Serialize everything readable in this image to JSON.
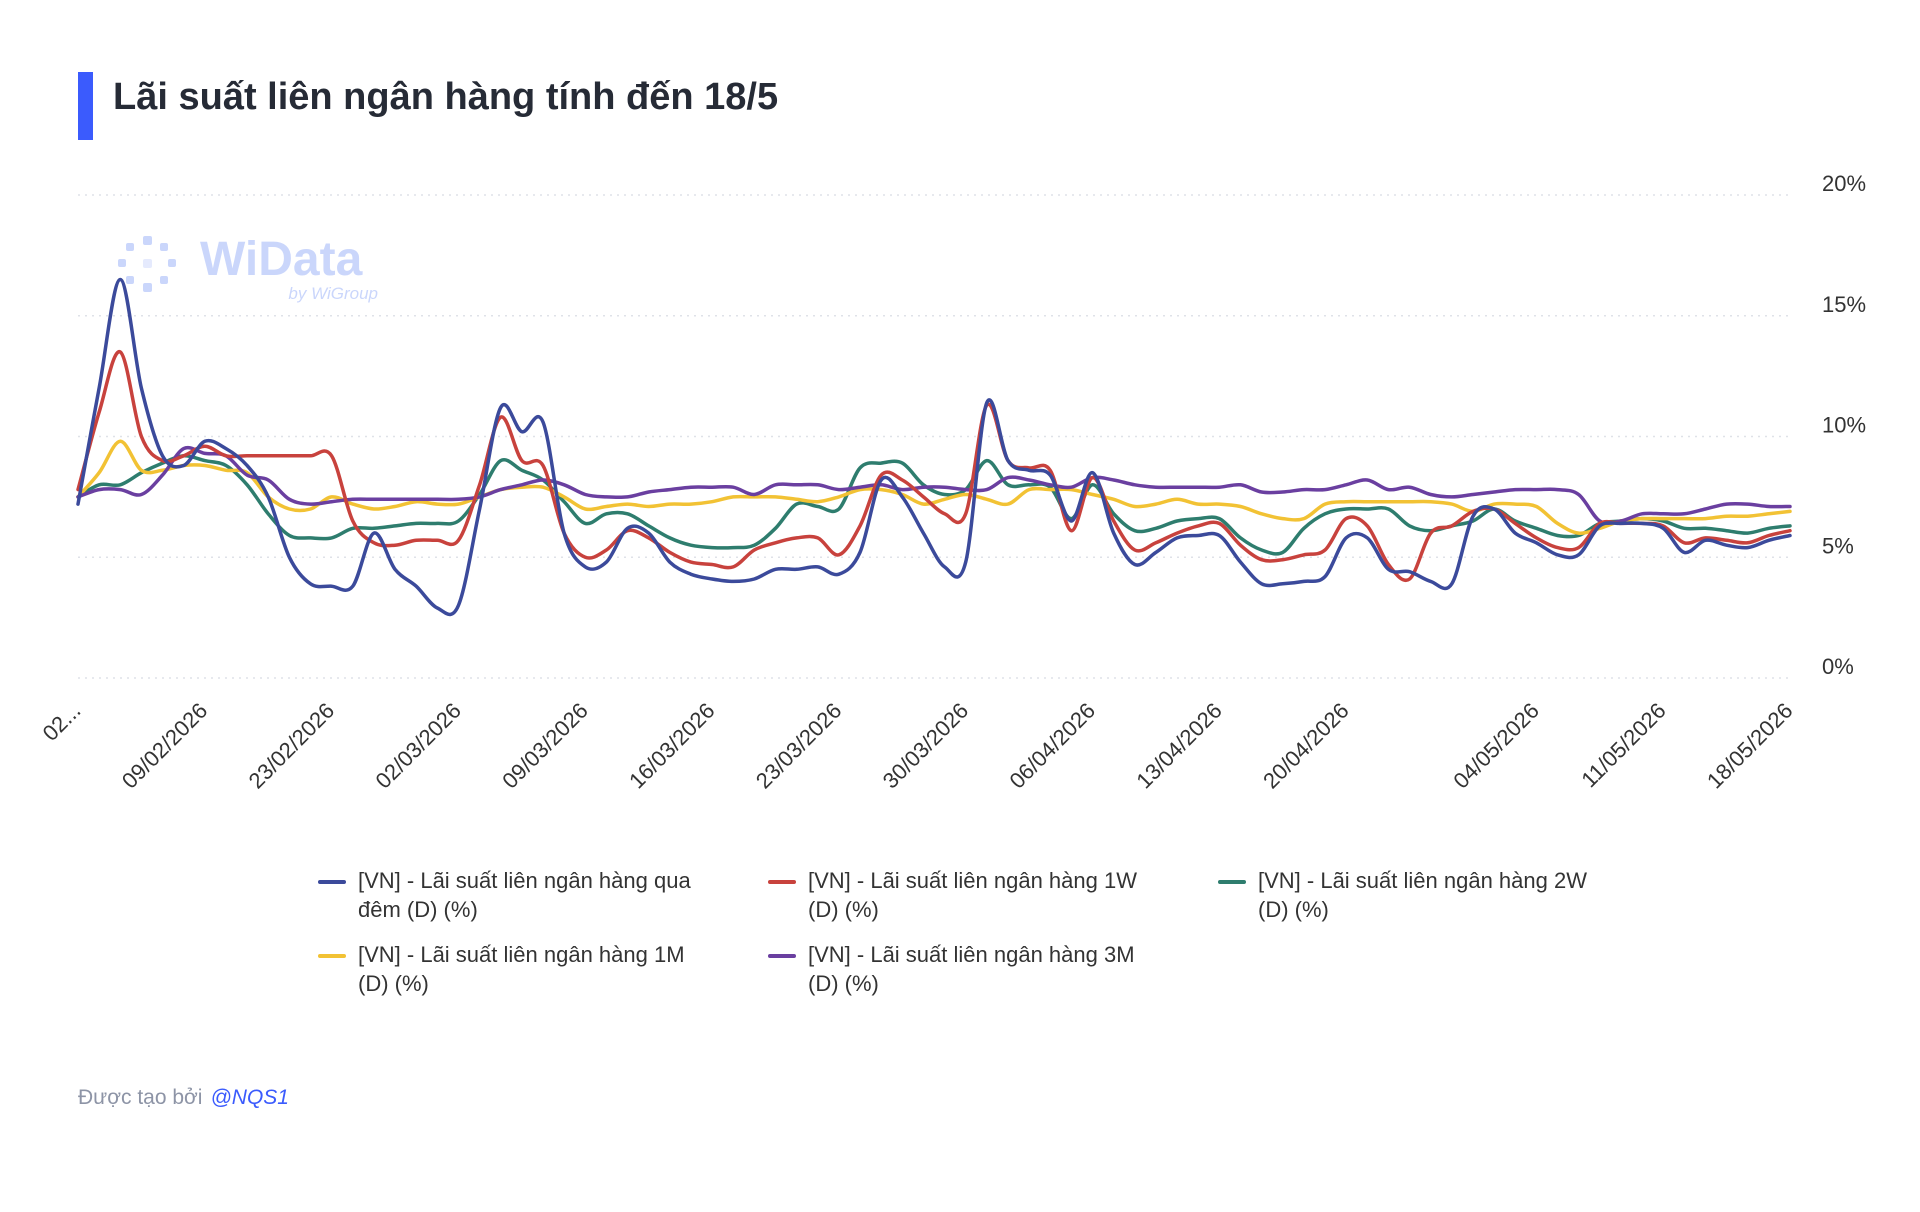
{
  "header": {
    "title": "Lãi suất liên ngân hàng tính đến 18/5"
  },
  "watermark": {
    "brand": "WiData",
    "sub": "by WiGroup"
  },
  "footer": {
    "prefix": "Được tạo bởi",
    "handle": "@NQS1"
  },
  "chart_data": {
    "type": "line",
    "y_axis_position": "right",
    "ylim": [
      0,
      20
    ],
    "yticks": [
      "20%",
      "15%",
      "10%",
      "5%",
      "0%"
    ],
    "ytick_values": [
      20,
      15,
      10,
      5,
      0
    ],
    "grid": "horizontal-dotted",
    "x_tick_labels": [
      "02...",
      "09/02/2026",
      "23/02/2026",
      "02/03/2026",
      "09/03/2026",
      "16/03/2026",
      "23/03/2026",
      "30/03/2026",
      "06/04/2026",
      "13/04/2026",
      "20/04/2026",
      "04/05/2026",
      "11/05/2026",
      "18/05/2026"
    ],
    "x_tick_positions": [
      0,
      6,
      12,
      18,
      24,
      30,
      36,
      42,
      48,
      54,
      60,
      69,
      75,
      81
    ],
    "x_count": 82,
    "legend_position": "bottom",
    "series": [
      {
        "name": "[VN] - Lãi suất liên ngân hàng qua đêm (D) (%)",
        "color": "#3b4a9b",
        "values": [
          7.2,
          12,
          16.5,
          12,
          9.2,
          8.8,
          9.8,
          9.5,
          8.8,
          7.5,
          5,
          3.9,
          3.8,
          3.8,
          6,
          4.5,
          3.8,
          2.9,
          3,
          7,
          11.2,
          10.2,
          10.6,
          6,
          4.6,
          4.8,
          6.2,
          6,
          4.8,
          4.3,
          4.1,
          4,
          4.1,
          4.5,
          4.5,
          4.6,
          4.3,
          5.2,
          8.2,
          7.5,
          6,
          4.6,
          4.8,
          11.4,
          9,
          8.6,
          8.4,
          6.5,
          8.5,
          6,
          4.7,
          5.2,
          5.8,
          5.9,
          5.9,
          4.8,
          3.9,
          3.9,
          4,
          4.2,
          5.8,
          5.8,
          4.5,
          4.4,
          4,
          3.9,
          6.7,
          7,
          6,
          5.6,
          5.1,
          5.1,
          6.3,
          6.4,
          6.4,
          6.2,
          5.2,
          5.7,
          5.5,
          5.4,
          5.7,
          5.9
        ]
      },
      {
        "name": "[VN] - Lãi suất liên ngân hàng 1W (D) (%)",
        "color": "#c8423d",
        "values": [
          7.8,
          11,
          13.5,
          10,
          9,
          9.2,
          9.6,
          9.2,
          9.2,
          9.2,
          9.2,
          9.2,
          9.2,
          6.5,
          5.6,
          5.5,
          5.7,
          5.7,
          5.7,
          8,
          10.8,
          9,
          8.8,
          6,
          5,
          5.3,
          6.1,
          5.8,
          5.2,
          4.8,
          4.7,
          4.6,
          5.3,
          5.6,
          5.8,
          5.8,
          5.1,
          6.3,
          8.4,
          8.2,
          7.5,
          6.8,
          6.8,
          11.3,
          9,
          8.7,
          8.6,
          6.1,
          8.3,
          6.5,
          5.3,
          5.6,
          6,
          6.3,
          6.4,
          5.5,
          4.9,
          4.9,
          5.1,
          5.3,
          6.6,
          6.3,
          4.7,
          4.1,
          6,
          6.3,
          6.9,
          7,
          6.4,
          5.8,
          5.4,
          5.4,
          6.4,
          6.4,
          6.4,
          6.3,
          5.6,
          5.8,
          5.7,
          5.6,
          5.9,
          6.1
        ]
      },
      {
        "name": "[VN] - Lãi suất liên ngân hàng 2W (D) (%)",
        "color": "#2e7d6e",
        "values": [
          7.5,
          8,
          8,
          8.5,
          8.9,
          9.2,
          9,
          8.8,
          8,
          6.8,
          5.9,
          5.8,
          5.8,
          6.2,
          6.2,
          6.3,
          6.4,
          6.4,
          6.5,
          7.6,
          9,
          8.6,
          8.2,
          7.3,
          6.4,
          6.8,
          6.8,
          6.3,
          5.8,
          5.5,
          5.4,
          5.4,
          5.5,
          6.2,
          7.2,
          7.1,
          7,
          8.7,
          8.9,
          8.9,
          8,
          7.6,
          7.8,
          9,
          8,
          8,
          7.9,
          6.6,
          8,
          6.8,
          6.1,
          6.2,
          6.5,
          6.6,
          6.6,
          5.8,
          5.3,
          5.2,
          6.2,
          6.8,
          7,
          7,
          7,
          6.3,
          6.1,
          6.3,
          6.5,
          7,
          6.5,
          6.2,
          5.9,
          5.9,
          6.4,
          6.5,
          6.6,
          6.5,
          6.2,
          6.2,
          6.1,
          6,
          6.2,
          6.3
        ]
      },
      {
        "name": "[VN] - Lãi suất liên ngân hàng 1M (D) (%)",
        "color": "#f2c234",
        "values": [
          7.5,
          8.5,
          9.8,
          8.6,
          8.6,
          8.8,
          8.8,
          8.6,
          8.5,
          7.5,
          7,
          7,
          7.5,
          7.2,
          7,
          7.1,
          7.3,
          7.2,
          7.2,
          7.5,
          7.8,
          7.9,
          7.9,
          7.5,
          7,
          7.1,
          7.2,
          7.1,
          7.2,
          7.2,
          7.3,
          7.5,
          7.5,
          7.5,
          7.4,
          7.3,
          7.5,
          7.8,
          7.8,
          7.6,
          7.2,
          7.4,
          7.6,
          7.4,
          7.2,
          7.8,
          7.8,
          7.8,
          7.6,
          7.4,
          7.1,
          7.2,
          7.4,
          7.2,
          7.2,
          7.1,
          6.8,
          6.6,
          6.6,
          7.2,
          7.3,
          7.3,
          7.3,
          7.3,
          7.3,
          7.2,
          6.9,
          7.2,
          7.2,
          7.1,
          6.4,
          6,
          6.2,
          6.5,
          6.6,
          6.6,
          6.6,
          6.6,
          6.7,
          6.7,
          6.8,
          6.9
        ]
      },
      {
        "name": "[VN] - Lãi suất liên ngân hàng 3M (D) (%)",
        "color": "#6a3fa0",
        "values": [
          7.5,
          7.8,
          7.8,
          7.6,
          8.4,
          9.5,
          9.3,
          9.2,
          8.4,
          8.2,
          7.4,
          7.2,
          7.3,
          7.4,
          7.4,
          7.4,
          7.4,
          7.4,
          7.4,
          7.5,
          7.8,
          8,
          8.2,
          8,
          7.6,
          7.5,
          7.5,
          7.7,
          7.8,
          7.9,
          7.9,
          7.9,
          7.6,
          8,
          8,
          8,
          7.8,
          7.9,
          8,
          7.8,
          7.9,
          7.9,
          7.8,
          7.8,
          8.3,
          8.2,
          8,
          7.9,
          8.3,
          8.2,
          8,
          7.9,
          7.9,
          7.9,
          7.9,
          8,
          7.7,
          7.7,
          7.8,
          7.8,
          8,
          8.2,
          7.8,
          7.9,
          7.6,
          7.5,
          7.6,
          7.7,
          7.8,
          7.8,
          7.8,
          7.6,
          6.5,
          6.5,
          6.8,
          6.8,
          6.8,
          7,
          7.2,
          7.2,
          7.1,
          7.1
        ]
      }
    ]
  }
}
